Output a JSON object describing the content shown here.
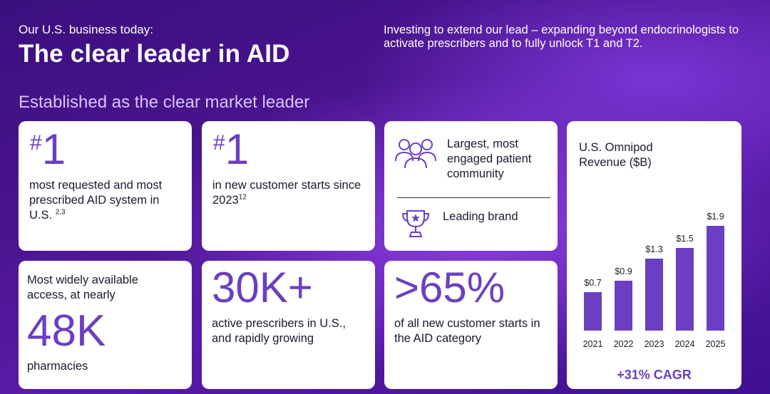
{
  "header": {
    "eyebrow": "Our U.S. business today:",
    "title": "The clear leader in AID",
    "intro": "Investing to extend our lead – expanding beyond endocrinologists to activate prescribers and to fully unlock T1 and T2."
  },
  "section_title": "Established as the clear market leader",
  "cards": {
    "c1": {
      "hash": "#",
      "number": "1",
      "text": "most requested and most prescribed AID system in U.S.",
      "footnote": "2,3"
    },
    "c2": {
      "hash": "#",
      "number": "1",
      "text": "in new customer starts since 2023",
      "footnote": "12"
    },
    "c3": {
      "item1": "Largest, most engaged patient community",
      "item2": "Leading brand"
    },
    "c5": {
      "lead": "Most widely available access, at nearly",
      "big": "48K",
      "tail": "pharmacies"
    },
    "c6": {
      "big": "30K+",
      "text": "active prescribers in U.S., and rapidly growing"
    },
    "c7": {
      "big": ">65%",
      "text": "of all new customer starts in the AID category"
    }
  },
  "colors": {
    "accent": "#6b3fc2",
    "background": "#4a148f"
  },
  "icons": {
    "community": "community-people-icon",
    "brand": "trophy-star-icon"
  },
  "chart_data": {
    "type": "bar",
    "title": "U.S. Omnipod Revenue ($B)",
    "categories": [
      "2021",
      "2022",
      "2023",
      "2024",
      "2025"
    ],
    "values": [
      0.7,
      0.9,
      1.3,
      1.5,
      1.9
    ],
    "labels": [
      "$0.7",
      "$0.9",
      "$1.3",
      "$1.5",
      "$1.9"
    ],
    "ylim": [
      0,
      1.9
    ],
    "grid": false,
    "annotation": "+31% CAGR"
  }
}
